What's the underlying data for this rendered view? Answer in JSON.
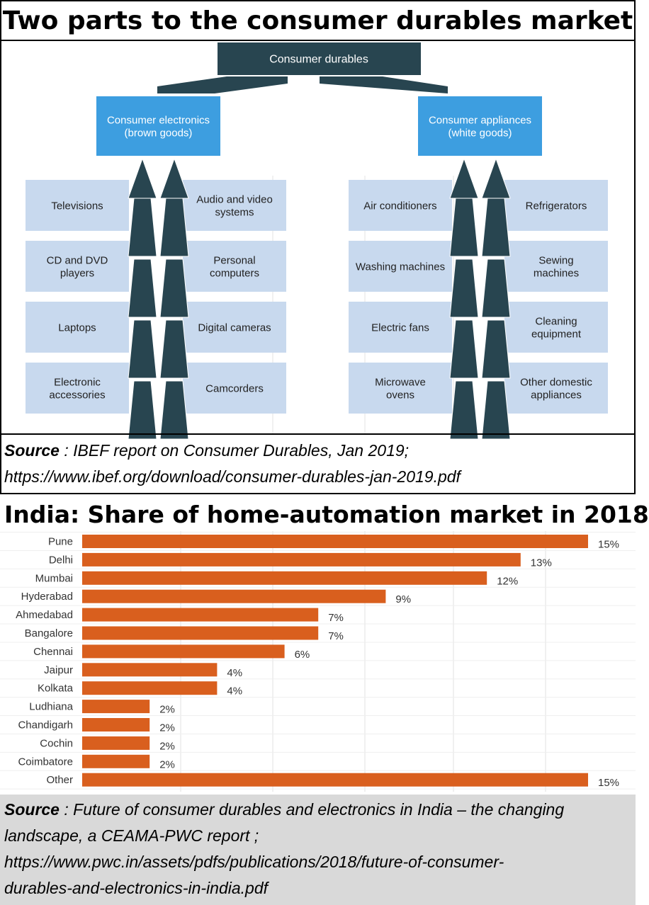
{
  "section1": {
    "title": "Two parts to the consumer durables market",
    "source_label": "Source",
    "source_lines": [
      " : IBEF report on Consumer Durables, Jan 2019;",
      "https://www.ibef.org/download/consumer-durables-jan-2019.pdf"
    ]
  },
  "diagram": {
    "root": "Consumer durables",
    "branches": [
      {
        "name": [
          "Consumer electronics",
          "(brown goods)"
        ],
        "left": [
          [
            "Televisions"
          ],
          [
            "CD and DVD",
            "players"
          ],
          [
            "Laptops"
          ],
          [
            "Electronic",
            "accessories"
          ]
        ],
        "right": [
          [
            "Audio and video",
            "systems"
          ],
          [
            "Personal",
            "computers"
          ],
          [
            "Digital cameras"
          ],
          [
            "Camcorders"
          ]
        ]
      },
      {
        "name": [
          "Consumer appliances",
          "(white goods)"
        ],
        "left": [
          [
            "Air conditioners"
          ],
          [
            "Washing machines"
          ],
          [
            "Electric fans"
          ],
          [
            "Microwave",
            "ovens"
          ]
        ],
        "right": [
          [
            "Refrigerators"
          ],
          [
            "Sewing",
            "machines"
          ],
          [
            "Cleaning",
            "equipment"
          ],
          [
            "Other domestic",
            "appliances"
          ]
        ]
      }
    ],
    "colors": {
      "root": "#284550",
      "branch": "#3d9ee0",
      "leaf": "#c8d9ee",
      "arrow": "#284550"
    }
  },
  "section2": {
    "title": "India: Share of home-automation market in 2018",
    "source_label": "Source",
    "source_lines": [
      " : Future of consumer durables and electronics in India – the changing",
      "landscape, a CEAMA-PWC report ;",
      "https://www.pwc.in/assets/pdfs/publications/2018/future-of-consumer-",
      "durables-and-electronics-in-india.pdf"
    ]
  },
  "chart_data": {
    "type": "bar",
    "orientation": "horizontal",
    "title": "India: Share of home-automation market in 2018",
    "categories": [
      "Pune",
      "Delhi",
      "Mumbai",
      "Hyderabad",
      "Ahmedabad",
      "Bangalore",
      "Chennai",
      "Jaipur",
      "Kolkata",
      "Ludhiana",
      "Chandigarh",
      "Cochin",
      "Coimbatore",
      "Other"
    ],
    "values": [
      15,
      13,
      12,
      9,
      7,
      7,
      6,
      4,
      4,
      2,
      2,
      2,
      2,
      15
    ],
    "value_labels": [
      "15%",
      "13%",
      "12%",
      "9%",
      "7%",
      "7%",
      "6%",
      "4%",
      "4%",
      "2%",
      "2%",
      "2%",
      "2%",
      "15%"
    ],
    "xlim": [
      0,
      15
    ],
    "grid": true,
    "bar_color": "#d95f1e"
  }
}
